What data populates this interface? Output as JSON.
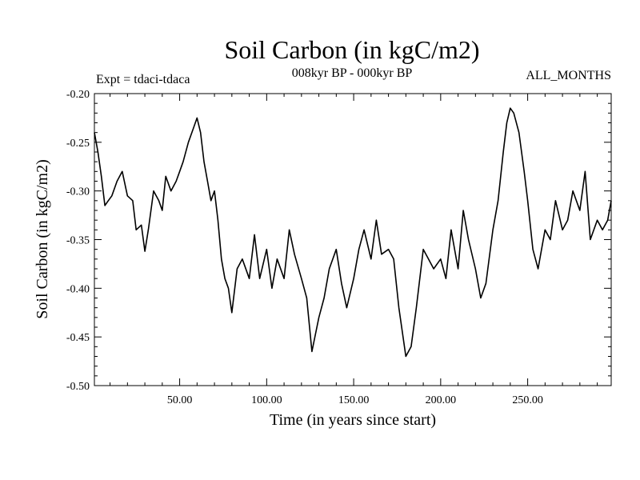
{
  "chart_data": {
    "type": "line",
    "title": "Soil Carbon (in kgC/m2)",
    "subtitle": "008kyr BP - 000kyr BP",
    "experiment": "Expt = tdaci-tdaca",
    "months": "ALL_MONTHS",
    "xlabel": "Time (in years since start)",
    "ylabel": "Soil Carbon (in kgC/m2)",
    "xlim": [
      1,
      298
    ],
    "ylim": [
      -0.5,
      -0.2
    ],
    "x_ticks": [
      50,
      100,
      150,
      200,
      250
    ],
    "x_tick_labels": [
      "50.00",
      "100.00",
      "150.00",
      "200.00",
      "250.00"
    ],
    "y_ticks": [
      -0.2,
      -0.25,
      -0.3,
      -0.35,
      -0.4,
      -0.45,
      -0.5
    ],
    "y_tick_labels": [
      "-0.20",
      "-0.25",
      "-0.30",
      "-0.35",
      "-0.40",
      "-0.45",
      "-0.50"
    ],
    "series": [
      {
        "name": "Soil Carbon",
        "color": "#000000",
        "x": [
          1,
          3,
          5,
          7,
          9,
          11,
          14,
          17,
          20,
          23,
          25,
          28,
          30,
          32,
          35,
          38,
          40,
          42,
          45,
          48,
          50,
          52,
          55,
          58,
          60,
          62,
          64,
          66,
          68,
          70,
          72,
          74,
          76,
          78,
          80,
          83,
          86,
          90,
          93,
          96,
          100,
          103,
          106,
          110,
          113,
          116,
          120,
          123,
          126,
          130,
          133,
          136,
          140,
          143,
          146,
          150,
          153,
          156,
          160,
          163,
          166,
          170,
          173,
          176,
          180,
          183,
          186,
          190,
          193,
          196,
          200,
          203,
          206,
          210,
          213,
          216,
          220,
          223,
          226,
          230,
          233,
          236,
          238,
          240,
          242,
          245,
          248,
          250,
          253,
          256,
          260,
          263,
          266,
          270,
          273,
          276,
          280,
          283,
          286,
          290,
          293,
          296,
          298
        ],
        "values": [
          -0.24,
          -0.26,
          -0.285,
          -0.315,
          -0.31,
          -0.305,
          -0.29,
          -0.28,
          -0.305,
          -0.31,
          -0.34,
          -0.335,
          -0.362,
          -0.34,
          -0.3,
          -0.31,
          -0.32,
          -0.285,
          -0.3,
          -0.29,
          -0.28,
          -0.27,
          -0.25,
          -0.235,
          -0.225,
          -0.24,
          -0.27,
          -0.29,
          -0.31,
          -0.3,
          -0.33,
          -0.37,
          -0.39,
          -0.4,
          -0.425,
          -0.38,
          -0.37,
          -0.39,
          -0.345,
          -0.39,
          -0.36,
          -0.4,
          -0.37,
          -0.39,
          -0.34,
          -0.365,
          -0.39,
          -0.41,
          -0.465,
          -0.43,
          -0.41,
          -0.38,
          -0.36,
          -0.395,
          -0.42,
          -0.39,
          -0.36,
          -0.34,
          -0.37,
          -0.33,
          -0.365,
          -0.36,
          -0.37,
          -0.42,
          -0.47,
          -0.46,
          -0.42,
          -0.36,
          -0.37,
          -0.38,
          -0.37,
          -0.39,
          -0.34,
          -0.38,
          -0.32,
          -0.35,
          -0.38,
          -0.41,
          -0.395,
          -0.34,
          -0.31,
          -0.26,
          -0.23,
          -0.215,
          -0.22,
          -0.24,
          -0.28,
          -0.31,
          -0.36,
          -0.38,
          -0.34,
          -0.35,
          -0.31,
          -0.34,
          -0.33,
          -0.3,
          -0.32,
          -0.28,
          -0.35,
          -0.33,
          -0.34,
          -0.33,
          -0.31
        ]
      }
    ]
  }
}
